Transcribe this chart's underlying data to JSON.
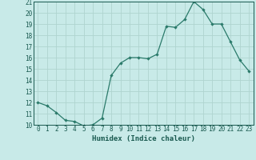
{
  "xlabel": "Humidex (Indice chaleur)",
  "ylabel": "",
  "x": [
    0,
    1,
    2,
    3,
    4,
    5,
    6,
    7,
    8,
    9,
    10,
    11,
    12,
    13,
    14,
    15,
    16,
    17,
    18,
    19,
    20,
    21,
    22,
    23
  ],
  "y": [
    12.0,
    11.7,
    11.1,
    10.4,
    10.3,
    9.9,
    10.0,
    10.6,
    14.4,
    15.5,
    16.0,
    16.0,
    15.9,
    16.3,
    18.8,
    18.7,
    19.4,
    21.0,
    20.3,
    19.0,
    19.0,
    17.4,
    15.8,
    14.8
  ],
  "line_color": "#2a7a6a",
  "marker": "D",
  "marker_size": 2.2,
  "bg_color": "#c8eae8",
  "grid_color": "#afd4d0",
  "ylim": [
    10,
    21
  ],
  "yticks": [
    10,
    11,
    12,
    13,
    14,
    15,
    16,
    17,
    18,
    19,
    20,
    21
  ],
  "xticks": [
    0,
    1,
    2,
    3,
    4,
    5,
    6,
    7,
    8,
    9,
    10,
    11,
    12,
    13,
    14,
    15,
    16,
    17,
    18,
    19,
    20,
    21,
    22,
    23
  ],
  "font_color": "#1a5a50",
  "label_fontsize": 6.5,
  "tick_fontsize": 5.5
}
